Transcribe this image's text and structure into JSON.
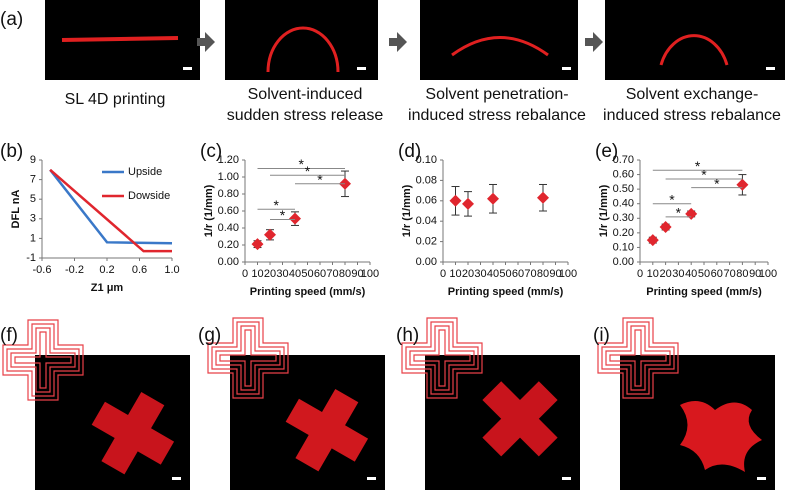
{
  "figure": {
    "panel_labels": [
      "(a)",
      "(f)",
      "(g)",
      "(h)",
      "(i)"
    ],
    "captions": [
      [
        "SL 4D printing"
      ],
      [
        "Solvent-induced",
        "sudden stress release"
      ],
      [
        "Solvent penetration-",
        "induced stress rebalance"
      ],
      [
        "Solvent exchange-",
        "induced stress rebalance"
      ]
    ]
  },
  "chart_data": [
    {
      "type": "line",
      "panel_label": "(b)",
      "x_label": "Z1 μm",
      "y_label": "DFL nA",
      "xlim": [
        -0.6,
        1.0
      ],
      "xticks": [
        -0.6,
        -0.2,
        0.2,
        0.6,
        {
          "value": 1,
          "label": "1.0"
        }
      ],
      "ylim": [
        -1,
        9
      ],
      "yticks": [
        -1,
        1,
        3,
        5,
        7,
        9
      ],
      "grid": false,
      "legend": "top-right",
      "series": [
        {
          "name": "Upside",
          "color": "#3a78c8",
          "x": [
            -0.5,
            0.2,
            1.0
          ],
          "values": [
            8,
            0.6,
            0.5
          ]
        },
        {
          "name": "Dowside",
          "color": "#e0262e",
          "x": [
            -0.5,
            0.65,
            1.0
          ],
          "values": [
            8,
            -0.3,
            -0.3
          ]
        }
      ]
    },
    {
      "type": "errorscatter",
      "panel_label": "(c)",
      "x_label": "Printing speed (mm/s)",
      "y_label": "1/r (1/mm)",
      "xlim": [
        0,
        100
      ],
      "xticks": [
        0,
        10,
        20,
        30,
        40,
        50,
        60,
        70,
        80,
        90,
        100
      ],
      "ylim": [
        0,
        1.2
      ],
      "yticks": [
        {
          "value": 0,
          "label": "0.00"
        },
        {
          "value": 0.2,
          "label": "0.20"
        },
        {
          "value": 0.4,
          "label": "0.40"
        },
        {
          "value": 0.6,
          "label": "0.60"
        },
        {
          "value": 0.8,
          "label": "0.80"
        },
        {
          "value": 1,
          "label": "1.00"
        },
        {
          "value": 1.2,
          "label": "1.20"
        }
      ],
      "color": "#e0262e",
      "x": [
        10,
        20,
        40,
        80
      ],
      "values": [
        0.21,
        0.32,
        0.51,
        0.92
      ],
      "errors": [
        0.04,
        0.06,
        0.08,
        0.15
      ],
      "brackets": [
        {
          "x": [
            10,
            80
          ],
          "y": 1.1,
          "label": "*"
        },
        {
          "x": [
            20,
            80
          ],
          "y": 1.02,
          "label": "*"
        },
        {
          "x": [
            40,
            80
          ],
          "y": 0.92,
          "label": "*"
        },
        {
          "x": [
            10,
            40
          ],
          "y": 0.62,
          "label": "*"
        },
        {
          "x": [
            20,
            40
          ],
          "y": 0.5,
          "label": "*"
        }
      ]
    },
    {
      "type": "errorscatter",
      "panel_label": "(d)",
      "x_label": "Printing speed (mm/s)",
      "y_label": "1/r (1/mm)",
      "xlim": [
        0,
        100
      ],
      "xticks": [
        0,
        10,
        20,
        30,
        40,
        50,
        60,
        70,
        80,
        90,
        100
      ],
      "ylim": [
        0,
        0.1
      ],
      "yticks": [
        {
          "value": 0,
          "label": "0.00"
        },
        {
          "value": 0.02,
          "label": "0.02"
        },
        {
          "value": 0.04,
          "label": "0.04"
        },
        {
          "value": 0.06,
          "label": "0.06"
        },
        {
          "value": 0.08,
          "label": "0.08"
        },
        {
          "value": 0.1,
          "label": "0.10"
        }
      ],
      "color": "#e0262e",
      "x": [
        10,
        20,
        40,
        80
      ],
      "values": [
        0.06,
        0.057,
        0.062,
        0.063
      ],
      "errors": [
        0.014,
        0.012,
        0.014,
        0.013
      ],
      "brackets": []
    },
    {
      "type": "errorscatter",
      "panel_label": "(e)",
      "x_label": "Printing speed (mm/s)",
      "y_label": "1/r (1/mm)",
      "xlim": [
        0,
        100
      ],
      "xticks": [
        0,
        10,
        20,
        30,
        40,
        50,
        60,
        70,
        80,
        90,
        100
      ],
      "ylim": [
        0,
        0.7
      ],
      "yticks": [
        {
          "value": 0,
          "label": "0.00"
        },
        {
          "value": 0.1,
          "label": "0.10"
        },
        {
          "value": 0.2,
          "label": "0.20"
        },
        {
          "value": 0.3,
          "label": "0.30"
        },
        {
          "value": 0.4,
          "label": "0.40"
        },
        {
          "value": 0.5,
          "label": "0.50"
        },
        {
          "value": 0.6,
          "label": "0.60"
        },
        {
          "value": 0.7,
          "label": "0.70"
        }
      ],
      "color": "#e0262e",
      "x": [
        10,
        20,
        40,
        80
      ],
      "values": [
        0.15,
        0.24,
        0.33,
        0.53
      ],
      "errors": [
        0.02,
        0.02,
        0.02,
        0.07
      ],
      "brackets": [
        {
          "x": [
            10,
            80
          ],
          "y": 0.63,
          "label": "*"
        },
        {
          "x": [
            20,
            80
          ],
          "y": 0.57,
          "label": "*"
        },
        {
          "x": [
            40,
            80
          ],
          "y": 0.51,
          "label": "*"
        },
        {
          "x": [
            10,
            40
          ],
          "y": 0.4,
          "label": "*"
        },
        {
          "x": [
            20,
            40
          ],
          "y": 0.31,
          "label": "*"
        }
      ]
    }
  ]
}
